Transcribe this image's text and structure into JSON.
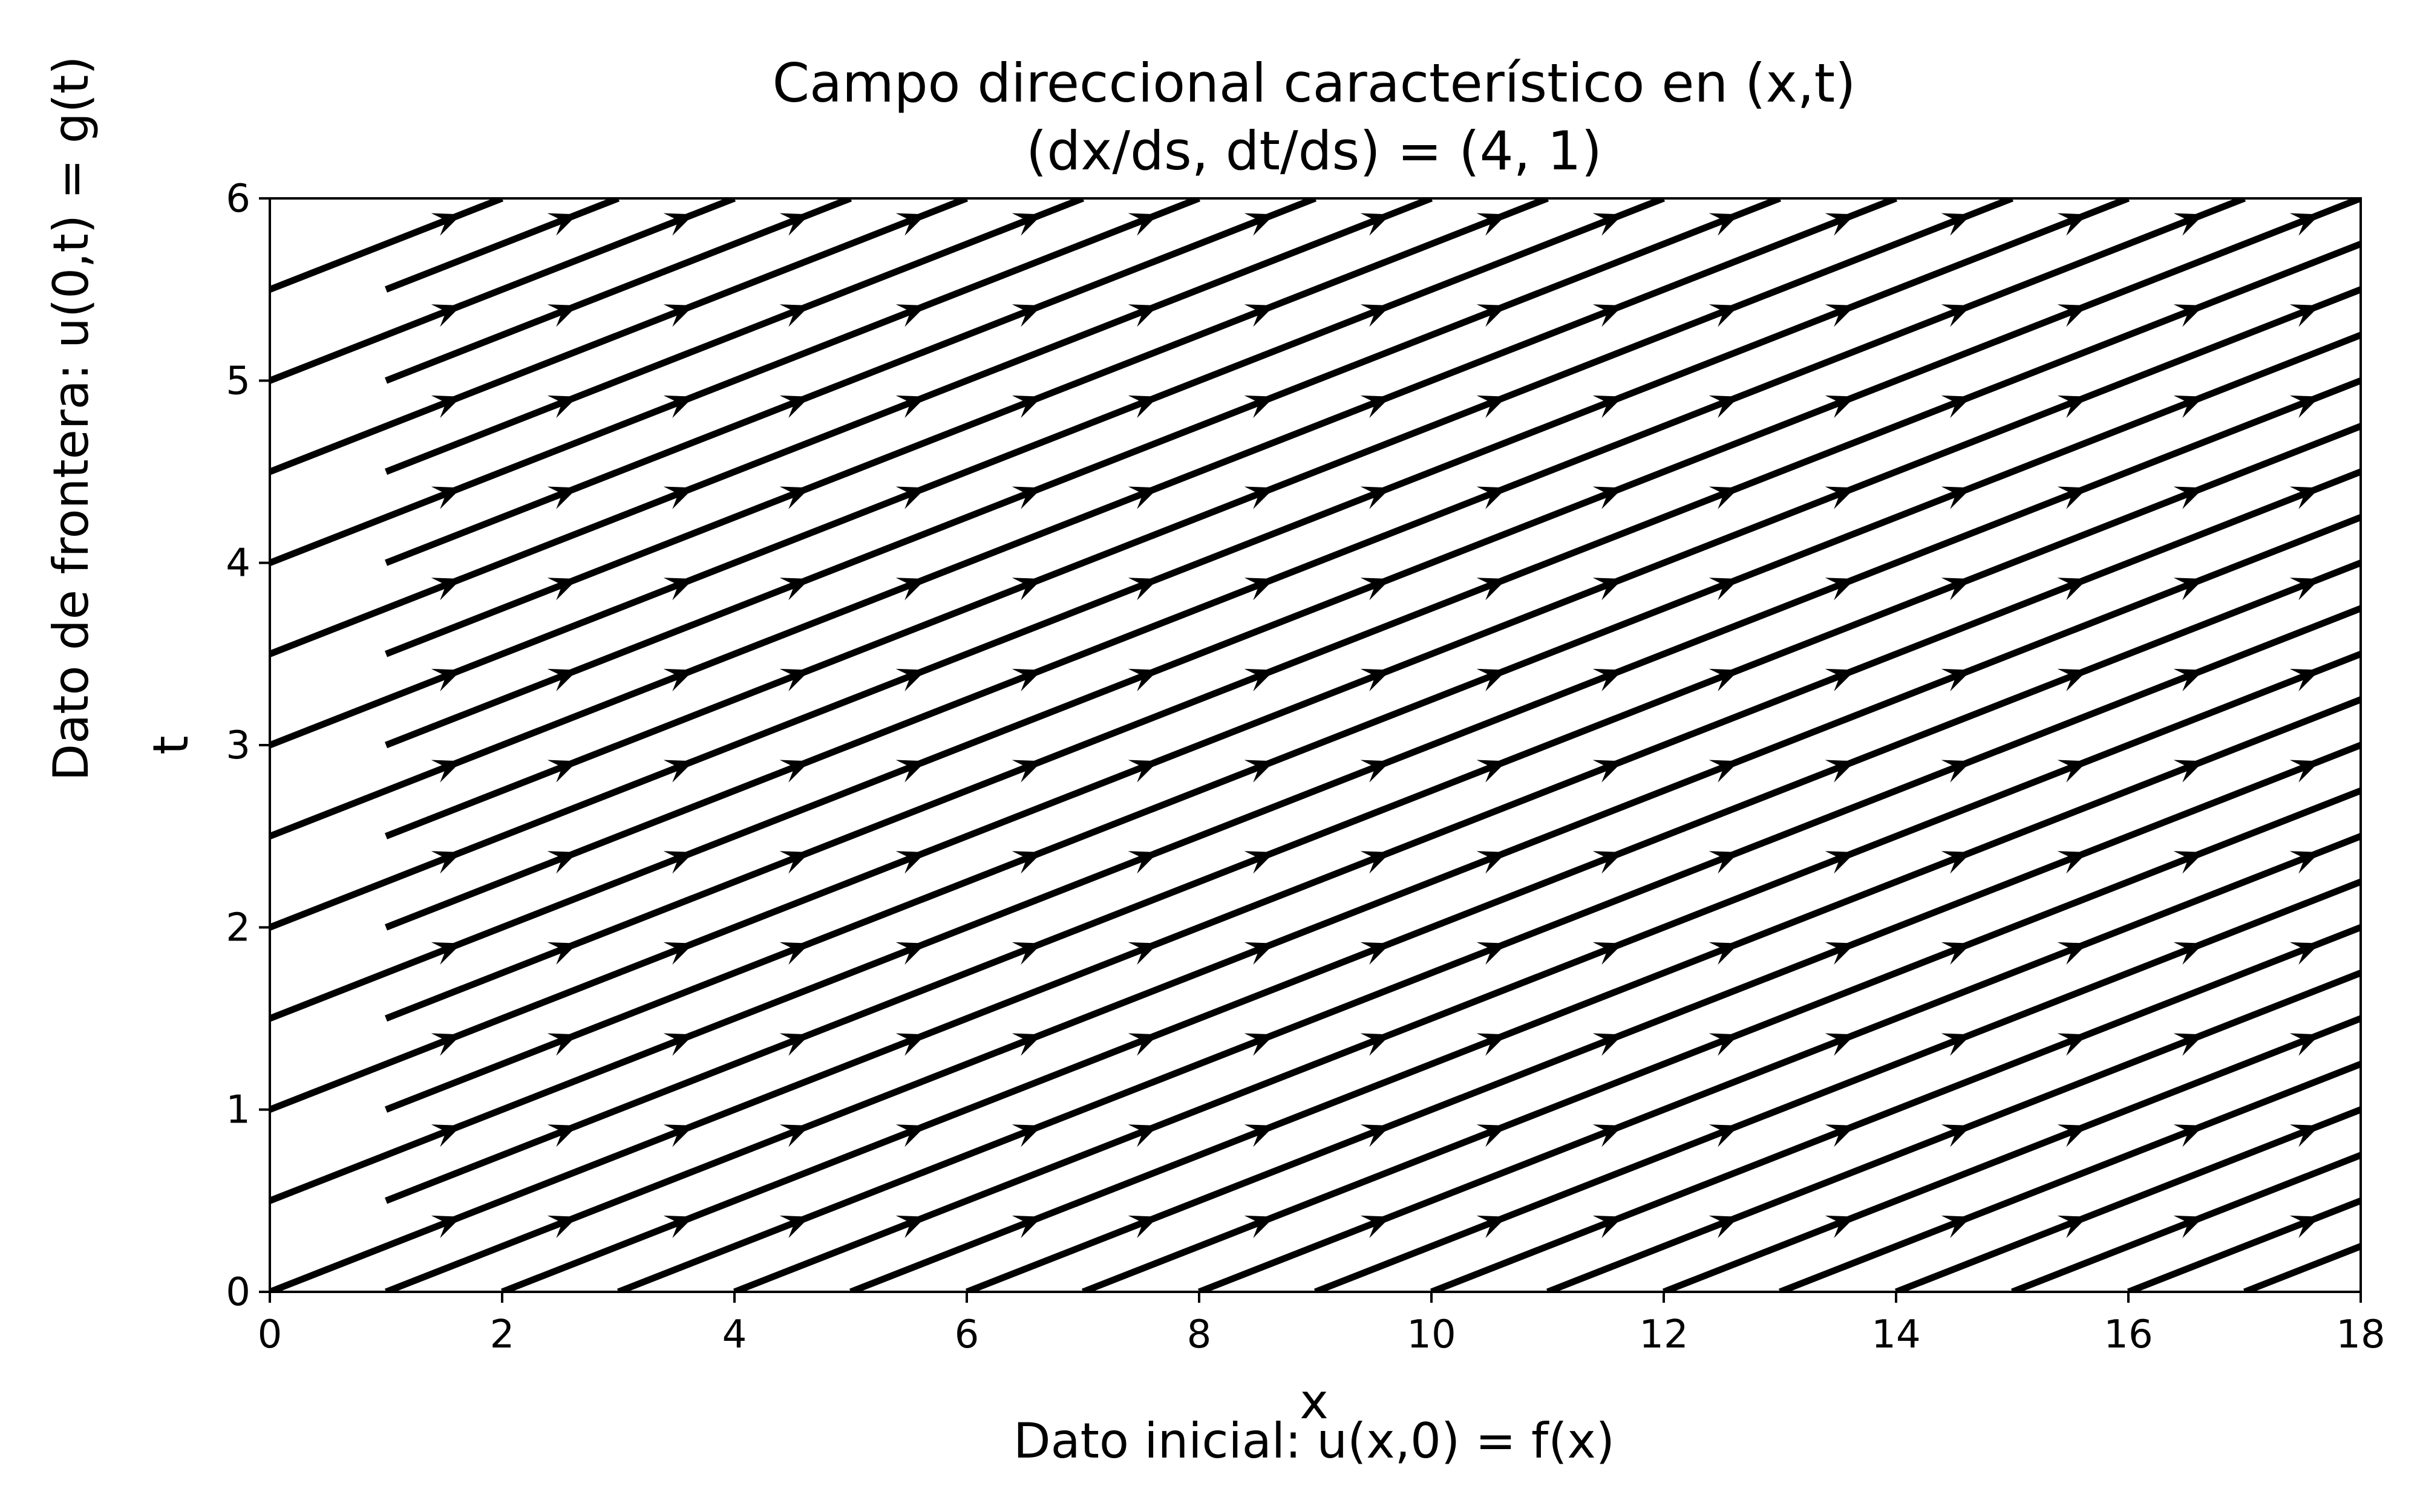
{
  "chart_data": {
    "type": "line",
    "title": "Campo direccional característico en (x,t)",
    "subtitle": "(dx/ds, dt/ds) = (4, 1)",
    "xlabel": "x",
    "ylabel": "t",
    "xlim": [
      0,
      18
    ],
    "ylim": [
      0,
      6
    ],
    "xticks": [
      0,
      2,
      4,
      6,
      8,
      10,
      12,
      14,
      16,
      18
    ],
    "yticks": [
      0,
      1,
      2,
      3,
      4,
      5,
      6
    ],
    "grid": false,
    "direction": [
      4,
      1
    ],
    "series": [
      {
        "x": [
          0,
          18
        ],
        "y": [
          0,
          4.5
        ]
      },
      {
        "x": [
          1,
          18
        ],
        "y": [
          0,
          4.25
        ]
      },
      {
        "x": [
          2,
          18
        ],
        "y": [
          0,
          4.0
        ]
      },
      {
        "x": [
          3,
          18
        ],
        "y": [
          0,
          3.75
        ]
      },
      {
        "x": [
          4,
          18
        ],
        "y": [
          0,
          3.5
        ]
      },
      {
        "x": [
          5,
          18
        ],
        "y": [
          0,
          3.25
        ]
      },
      {
        "x": [
          6,
          18
        ],
        "y": [
          0,
          3.0
        ]
      },
      {
        "x": [
          7,
          18
        ],
        "y": [
          0,
          2.75
        ]
      },
      {
        "x": [
          8,
          18
        ],
        "y": [
          0,
          2.5
        ]
      },
      {
        "x": [
          9,
          18
        ],
        "y": [
          0,
          2.25
        ]
      },
      {
        "x": [
          10,
          18
        ],
        "y": [
          0,
          2.0
        ]
      },
      {
        "x": [
          11,
          18
        ],
        "y": [
          0,
          1.75
        ]
      },
      {
        "x": [
          12,
          18
        ],
        "y": [
          0,
          1.5
        ]
      },
      {
        "x": [
          13,
          18
        ],
        "y": [
          0,
          1.25
        ]
      },
      {
        "x": [
          14,
          18
        ],
        "y": [
          0,
          1.0
        ]
      },
      {
        "x": [
          15,
          18
        ],
        "y": [
          0,
          0.75
        ]
      },
      {
        "x": [
          16,
          18
        ],
        "y": [
          0,
          0.5
        ]
      },
      {
        "x": [
          17,
          18
        ],
        "y": [
          0,
          0.25
        ]
      },
      {
        "x": [
          0,
          18
        ],
        "y": [
          0.5,
          5.0
        ]
      },
      {
        "x": [
          0,
          18
        ],
        "y": [
          1.0,
          5.5
        ]
      },
      {
        "x": [
          0,
          18
        ],
        "y": [
          1.5,
          6.0
        ]
      },
      {
        "x": [
          0,
          16
        ],
        "y": [
          2.0,
          6.0
        ]
      },
      {
        "x": [
          0,
          14
        ],
        "y": [
          2.5,
          6.0
        ]
      },
      {
        "x": [
          0,
          12
        ],
        "y": [
          3.0,
          6.0
        ]
      },
      {
        "x": [
          0,
          10
        ],
        "y": [
          3.5,
          6.0
        ]
      },
      {
        "x": [
          0,
          8
        ],
        "y": [
          4.0,
          6.0
        ]
      },
      {
        "x": [
          0,
          6
        ],
        "y": [
          4.5,
          6.0
        ]
      },
      {
        "x": [
          0,
          4
        ],
        "y": [
          5.0,
          6.0
        ]
      },
      {
        "x": [
          0,
          2
        ],
        "y": [
          5.5,
          6.0
        ]
      },
      {
        "x": [
          1,
          18
        ],
        "y": [
          0.5,
          4.75
        ]
      },
      {
        "x": [
          1,
          18
        ],
        "y": [
          1.0,
          5.25
        ]
      },
      {
        "x": [
          1,
          18
        ],
        "y": [
          1.5,
          5.75
        ]
      },
      {
        "x": [
          1,
          17
        ],
        "y": [
          2.0,
          6.0
        ]
      },
      {
        "x": [
          1,
          15
        ],
        "y": [
          2.5,
          6.0
        ]
      },
      {
        "x": [
          1,
          13
        ],
        "y": [
          3.0,
          6.0
        ]
      },
      {
        "x": [
          1,
          11
        ],
        "y": [
          3.5,
          6.0
        ]
      },
      {
        "x": [
          1,
          9
        ],
        "y": [
          4.0,
          6.0
        ]
      },
      {
        "x": [
          1,
          7
        ],
        "y": [
          4.5,
          6.0
        ]
      },
      {
        "x": [
          1,
          5
        ],
        "y": [
          5.0,
          6.0
        ]
      },
      {
        "x": [
          1,
          3
        ],
        "y": [
          5.5,
          6.0
        ]
      }
    ]
  },
  "side_labels": {
    "left": "Dato de frontera:  u(0,t) = g(t)",
    "bottom": "Dato inicial:  u(x,0) = f(x)"
  }
}
